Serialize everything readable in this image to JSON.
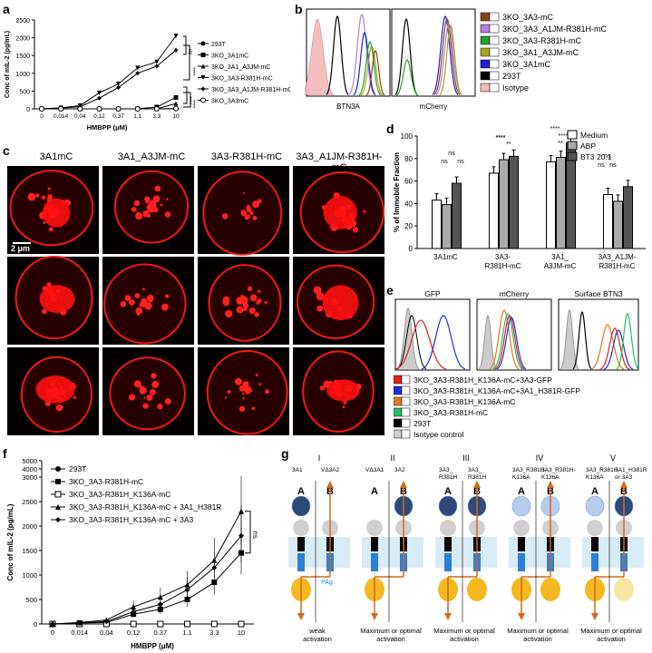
{
  "panels": {
    "a": {
      "letter": "a",
      "chart_data": {
        "type": "line",
        "ylabel": "Conc of mIL-2 (pg/mL)",
        "xlabel": "HMBPP (μM)",
        "categories": [
          "0",
          "0,014",
          "0,04",
          "0,12",
          "0,37",
          "1,1",
          "3,3",
          "10"
        ],
        "yticks": [
          "0",
          "500",
          "1000",
          "1500",
          "2000",
          "2500"
        ],
        "ylim": [
          0,
          2500
        ],
        "series": [
          {
            "name": "293T",
            "marker": "circle-filled",
            "values": [
              0,
              0,
              0,
              0,
              0,
              0,
              0,
              0
            ]
          },
          {
            "name": "3KO_3A1mC",
            "marker": "square-filled",
            "values": [
              0,
              0,
              0,
              0,
              0,
              0,
              50,
              320
            ]
          },
          {
            "name": "3KO_3A1_A3JM-mC",
            "marker": "triangle-up",
            "values": [
              0,
              0,
              0,
              0,
              0,
              0,
              0,
              150
            ]
          },
          {
            "name": "3KO_3A3-R381H-mC",
            "marker": "triangle-down",
            "values": [
              0,
              30,
              90,
              450,
              700,
              1150,
              1320,
              2050
            ]
          },
          {
            "name": "3KO_3A3_A1JM-R381H-mC",
            "marker": "diamond",
            "values": [
              0,
              20,
              60,
              300,
              600,
              1000,
              1200,
              1650
            ]
          },
          {
            "name": "3KO_3A3mC",
            "marker": "circle-open",
            "values": [
              0,
              0,
              0,
              0,
              0,
              0,
              0,
              10
            ]
          }
        ],
        "annotations": [
          "ns",
          "****",
          "****",
          "****"
        ]
      }
    },
    "b": {
      "letter": "b",
      "xlabels": [
        "BTN3A",
        "mCherry"
      ],
      "legend": [
        {
          "name": "3KO_3A3-mC",
          "color": "#8b4513"
        },
        {
          "name": "3KO_3A3_A1JM-R381H-mC",
          "color": "#b57edc"
        },
        {
          "name": "3KO_3A3-R381H-mC",
          "color": "#2aa02a"
        },
        {
          "name": "3KO_3A1_A3JM-mC",
          "color": "#a8a81e"
        },
        {
          "name": "3KO_3A1mC",
          "color": "#1f1fd0"
        },
        {
          "name": "293T",
          "color": "#000000"
        },
        {
          "name": "Isotype",
          "color": "#f4b8b8"
        }
      ]
    },
    "c": {
      "letter": "c",
      "columns": [
        "3A1mC",
        "3A1_A3JM-mC",
        "3A3-R381H-mC",
        "3A3_A1JM-R381H-mC"
      ],
      "scalebar": "2 μm"
    },
    "d": {
      "letter": "d",
      "chart_data": {
        "type": "bar",
        "ylabel": "% of Immobile Fraction",
        "ylim": [
          0,
          100
        ],
        "yticks": [
          "0",
          "20",
          "40",
          "60",
          "80",
          "100"
        ],
        "categories": [
          "3A1mC",
          "3A3-\nR381H-mC",
          "3A1_\nA3JM-mC",
          "3A3_A1JM-\nR381H-mC"
        ],
        "series": [
          {
            "name": "Medium",
            "color": "#ffffff",
            "values": [
              43,
              67,
              77,
              48
            ]
          },
          {
            "name": "ABP",
            "color": "#aaaaaa",
            "values": [
              39,
              79,
              81,
              42
            ]
          },
          {
            "name": "BT3 20.1",
            "color": "#555555",
            "values": [
              58,
              82,
              94,
              55
            ]
          }
        ],
        "annotations": [
          "ns",
          "ns",
          "ns",
          "****",
          "****",
          "**",
          "****",
          "**",
          "****",
          "ns",
          "ns",
          "ns"
        ]
      }
    },
    "e": {
      "letter": "e",
      "titles": [
        "GFP",
        "mCherry",
        "Surface BTN3"
      ],
      "legend": [
        {
          "name": "3KO_3A3-R381H_K136A-mC+3A3-GFP",
          "color": "#e02020"
        },
        {
          "name": "3KO_3A3-R381H_K136A-mC+3A1_H381R-GFP",
          "color": "#2030e0"
        },
        {
          "name": "3KO_3A3-R381H_K136A-mC",
          "color": "#e07a20"
        },
        {
          "name": "3KO_3A3-R381H-mC",
          "color": "#20c060"
        },
        {
          "name": "293T",
          "color": "#000000"
        },
        {
          "name": "Isotype control",
          "color": "#cccccc"
        }
      ]
    },
    "f": {
      "letter": "f",
      "chart_data": {
        "type": "line",
        "ylabel": "Conc of mIL-2 (pg/mL)",
        "xlabel": "HMBPP (μM)",
        "categories": [
          "0",
          "0.014",
          "0.04",
          "0.12",
          "0.37",
          "1.1",
          "3.3",
          "10"
        ],
        "yticks": [
          "0",
          "500",
          "1000",
          "1500",
          "2000",
          "2500",
          "3000",
          "4000",
          "5000"
        ],
        "series": [
          {
            "name": "293T",
            "marker": "circle-filled",
            "values": [
              0,
              0,
              0,
              0,
              0,
              0,
              0,
              0
            ]
          },
          {
            "name": "3KO_3A3-R381H-mC",
            "marker": "square-filled",
            "values": [
              0,
              20,
              30,
              200,
              300,
              500,
              850,
              1450
            ]
          },
          {
            "name": "3KO_3A3-R381H_K136A-mC",
            "marker": "square-open",
            "values": [
              0,
              0,
              0,
              0,
              0,
              0,
              0,
              0
            ]
          },
          {
            "name": "3KO_3A3-R381H_K136A-mC + 3A1_H381R",
            "marker": "triangle-up",
            "values": [
              0,
              30,
              80,
              350,
              550,
              800,
              1300,
              2300
            ]
          },
          {
            "name": "3KO_3A3-R381H_K136A-mC + 3A3",
            "marker": "diamond",
            "values": [
              0,
              20,
              50,
              250,
              400,
              700,
              1150,
              1800
            ]
          }
        ],
        "annotations": [
          "ns"
        ]
      }
    },
    "g": {
      "letter": "g",
      "columns": [
        {
          "roman": "I",
          "labels": [
            "3A1",
            "VΔ3A2"
          ],
          "ab": [
            "A",
            "B"
          ],
          "pag": "PAg",
          "caption": "weak\nactivation"
        },
        {
          "roman": "II",
          "labels": [
            "VΔ3A1",
            "3A2"
          ],
          "ab": [
            "A",
            "B"
          ],
          "caption": "Maximum or optimal\nactivation"
        },
        {
          "roman": "III",
          "labels": [
            "3A3_\nR381H",
            "3A3_\nR381H"
          ],
          "ab": [
            "A",
            "B"
          ],
          "caption": "Maximum or optimal\nactivation"
        },
        {
          "roman": "IV",
          "labels": [
            "3A3_R381H-\nK136A",
            "3A3_R381H-\nK136A"
          ],
          "ab": [
            "A",
            "B"
          ],
          "caption": "Maximum or optimal\nactivation"
        },
        {
          "roman": "V",
          "labels": [
            "3A3_R381H\nK136A",
            "3A1_H381R\nor 3A3"
          ],
          "ab": [
            "A",
            "B"
          ],
          "caption": "Maximum or optimal\nactivation"
        }
      ]
    }
  }
}
